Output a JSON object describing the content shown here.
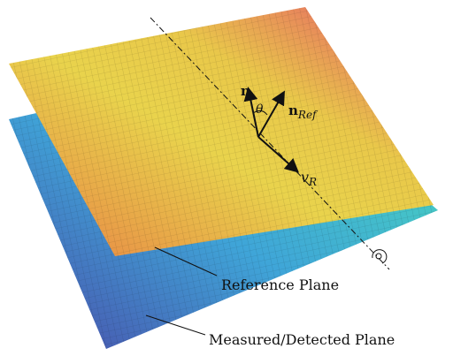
{
  "labels": {
    "n": "n",
    "theta": "θ",
    "n_ref": {
      "base": "n",
      "sub": "Ref"
    },
    "v_r": {
      "base": "v",
      "sub": "R"
    },
    "reference_plane": "Reference Plane",
    "measured_plane": "Measured/Detected Plane"
  }
}
